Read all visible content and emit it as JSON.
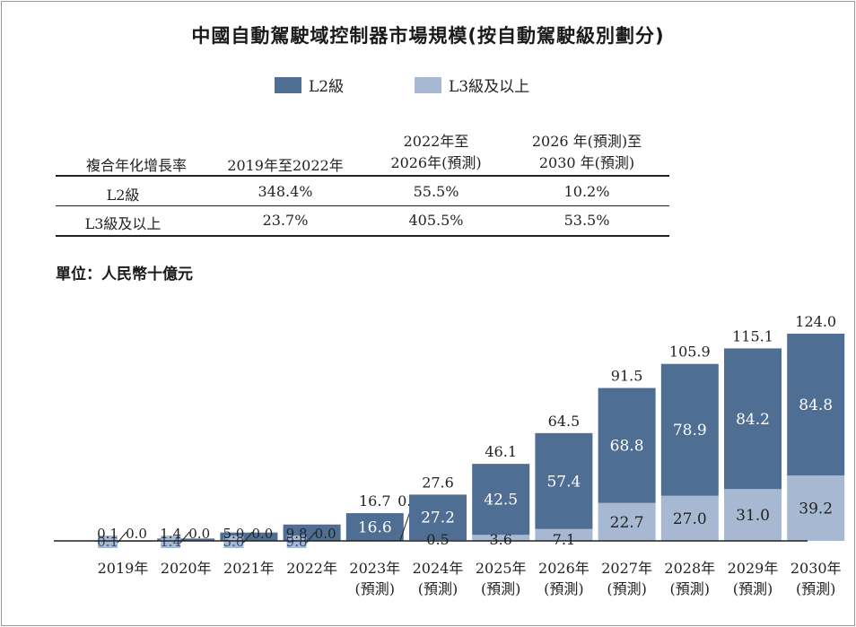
{
  "title": "中國自動駕駛域控制器市場規模(按自動駕駛級別劃分)",
  "unit": "單位：人民幣十億元",
  "colors": {
    "l2": "#4e6e93",
    "l3": "#a7b9d2",
    "axis": "#222222"
  },
  "cagr_table": {
    "header": [
      "複合年化增長率",
      "2019年至2022年",
      "2022年至\n2026年(預測)",
      "2026 年(預測)至\n2030 年(預測)"
    ],
    "rows": [
      [
        "L2級",
        "348.4%",
        "55.5%",
        "10.2%"
      ],
      [
        "L3級及以上",
        "23.7%",
        "405.5%",
        "53.5%"
      ]
    ]
  },
  "chart_data": {
    "type": "bar",
    "stacked": true,
    "title": "中國自動駕駛域控制器市場規模(按自動駕駛級別劃分)",
    "ylabel": "單位：人民幣十億元",
    "legend_position": "top",
    "categories": [
      "2019年",
      "2020年",
      "2021年",
      "2022年",
      "2023年",
      "2024年",
      "2025年",
      "2026年",
      "2027年",
      "2028年",
      "2029年",
      "2030年"
    ],
    "category_sublabels": [
      "",
      "",
      "",
      "",
      "(預測)",
      "(預測)",
      "(預測)",
      "(預測)",
      "(預測)",
      "(預測)",
      "(預測)",
      "(預測)"
    ],
    "series": [
      {
        "name": "L3級及以上",
        "values": [
          0.0,
          0.0,
          0.0,
          0.0,
          0.0,
          0.5,
          3.6,
          7.1,
          22.7,
          27.0,
          31.0,
          39.2
        ]
      },
      {
        "name": "L2級",
        "values": [
          0.1,
          1.4,
          5.0,
          9.8,
          16.6,
          27.2,
          42.5,
          57.4,
          68.8,
          78.9,
          84.2,
          84.8
        ]
      }
    ],
    "totals": [
      0.1,
      1.4,
      5.0,
      9.8,
      16.7,
      27.6,
      46.1,
      64.5,
      91.5,
      105.9,
      115.1,
      124.0
    ],
    "label_text": {
      "l2": [
        "0.1",
        "1.4",
        "5.0",
        "9.8",
        "16.6",
        "27.2",
        "42.5",
        "57.4",
        "68.8",
        "78.9",
        "84.2",
        "84.8"
      ],
      "l3": [
        "0.0",
        "0.0",
        "0.0",
        "0.0",
        "0.0",
        "0.5",
        "3.6",
        "7.1",
        "22.7",
        "27.0",
        "31.0",
        "39.2"
      ],
      "total": [
        "0.1",
        "1.4",
        "5.0",
        "9.8",
        "16.7",
        "27.6",
        "46.1",
        "64.5",
        "91.5",
        "105.9",
        "115.1",
        "124.0"
      ]
    },
    "ylim": [
      0,
      124
    ],
    "grid": false
  }
}
